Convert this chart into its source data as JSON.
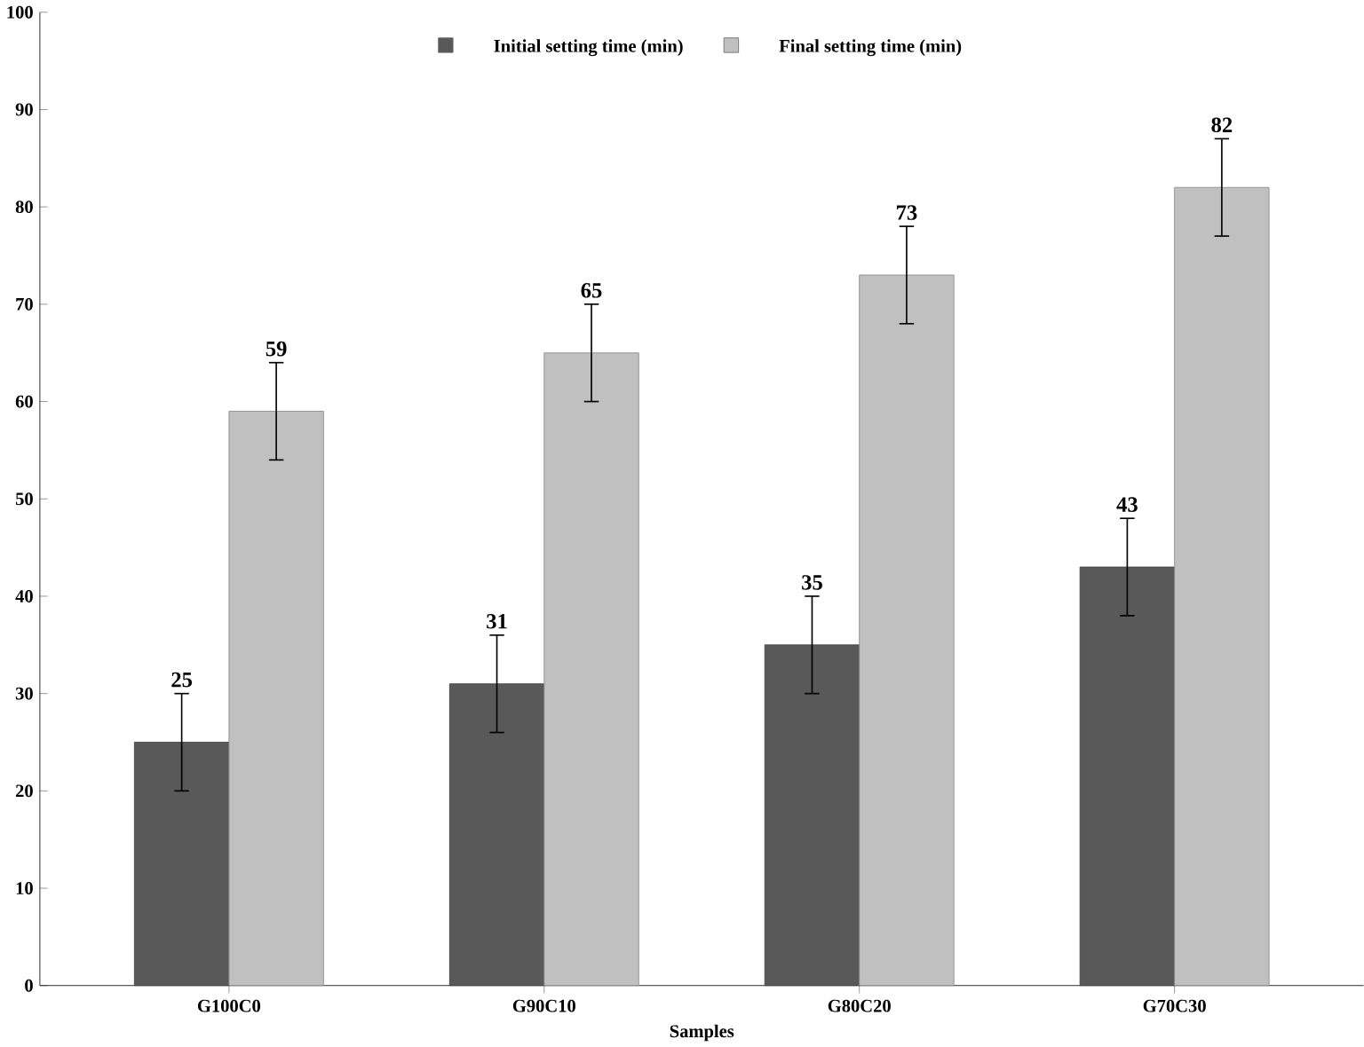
{
  "chart_data": {
    "type": "bar",
    "xlabel": "Samples",
    "categories": [
      "G100C0",
      "G90C10",
      "G80C20",
      "G70C30"
    ],
    "series": [
      {
        "name": "Initial setting time (min)",
        "color": "#595959",
        "values": [
          25,
          31,
          35,
          43
        ],
        "errors": [
          5,
          5,
          5,
          5
        ]
      },
      {
        "name": "Final setting time (min)",
        "color": "#c0c0c0",
        "values": [
          59,
          65,
          73,
          82
        ],
        "errors": [
          5,
          5,
          5,
          5
        ]
      }
    ],
    "ylim": [
      0,
      100
    ],
    "yticks": [
      0,
      10,
      20,
      30,
      40,
      50,
      60,
      70,
      80,
      90,
      100
    ],
    "data_labels": true,
    "legend": "top",
    "grid": false
  }
}
